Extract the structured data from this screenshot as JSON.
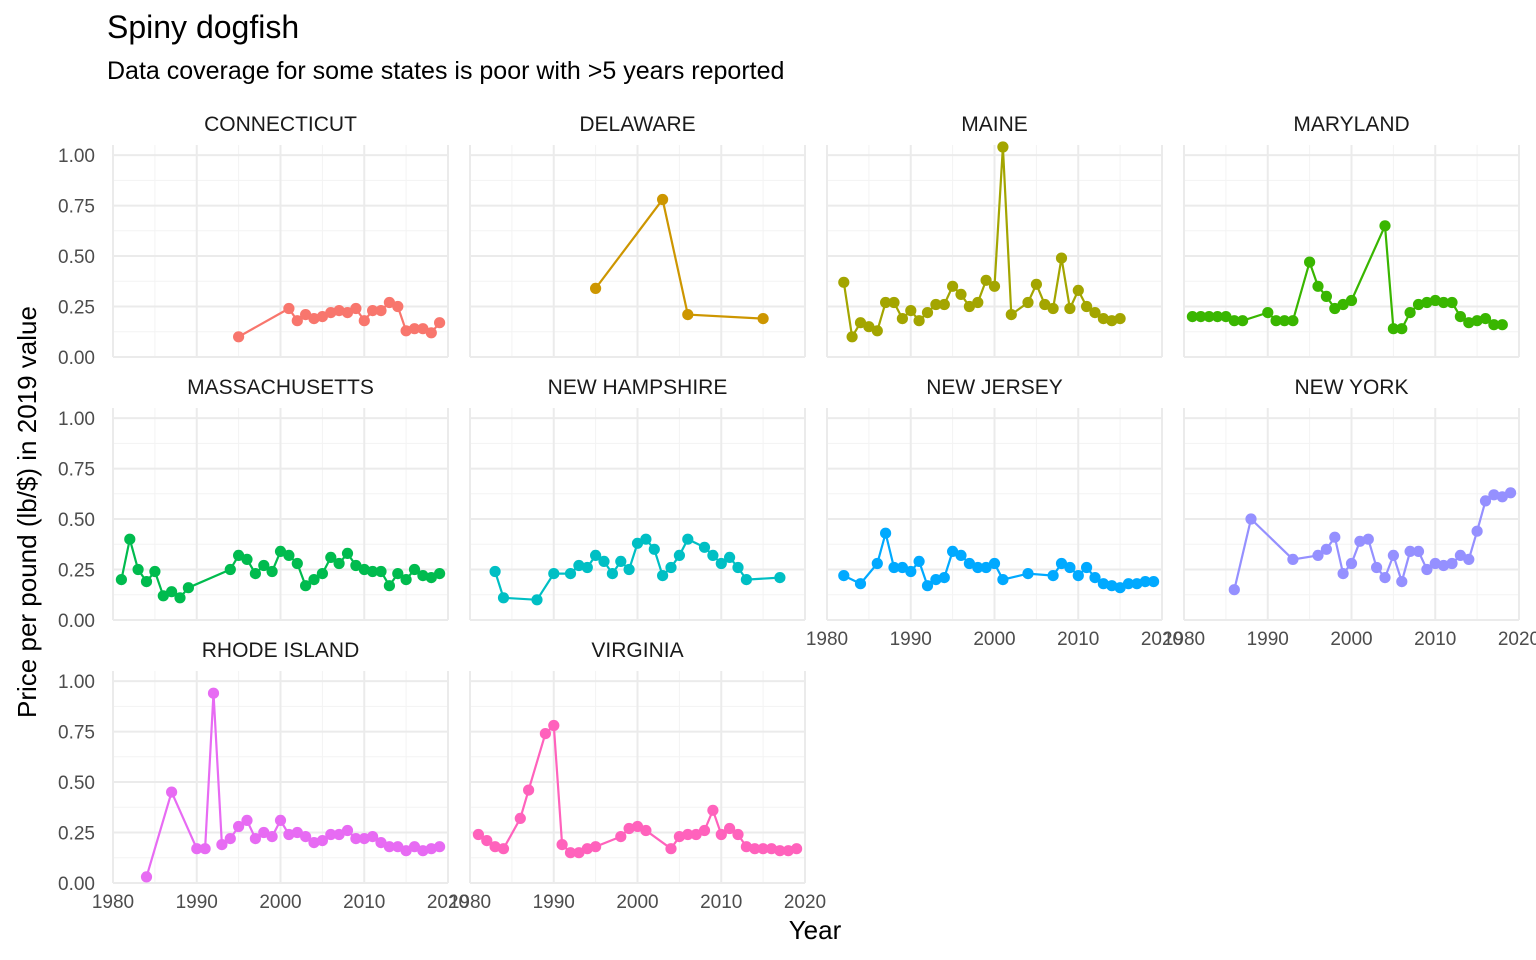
{
  "chart_data": {
    "type": "line",
    "title": "Spiny dogfish",
    "subtitle": "Data coverage for some states is poor with >5 years reported",
    "xlabel": "Year",
    "ylabel": "Price per pound (lb/$) in 2019 value",
    "xlim": [
      1980,
      2020
    ],
    "ylim": [
      0,
      1.05
    ],
    "x_ticks": [
      "1980",
      "1990",
      "2000",
      "2010",
      "2020"
    ],
    "y_ticks": [
      "0.00",
      "0.25",
      "0.50",
      "0.75",
      "1.00"
    ],
    "grid": true,
    "facets": [
      {
        "name": "CONNECTICUT",
        "color": "#F8766D",
        "points": [
          [
            1995,
            0.1
          ],
          [
            2001,
            0.24
          ],
          [
            2002,
            0.18
          ],
          [
            2003,
            0.21
          ],
          [
            2004,
            0.19
          ],
          [
            2005,
            0.2
          ],
          [
            2006,
            0.22
          ],
          [
            2007,
            0.23
          ],
          [
            2008,
            0.22
          ],
          [
            2009,
            0.24
          ],
          [
            2010,
            0.18
          ],
          [
            2011,
            0.23
          ],
          [
            2012,
            0.23
          ],
          [
            2013,
            0.27
          ],
          [
            2014,
            0.25
          ],
          [
            2015,
            0.13
          ],
          [
            2016,
            0.14
          ],
          [
            2017,
            0.14
          ],
          [
            2018,
            0.12
          ],
          [
            2019,
            0.17
          ]
        ]
      },
      {
        "name": "DELAWARE",
        "color": "#CD9600",
        "points": [
          [
            1995,
            0.34
          ],
          [
            2003,
            0.78
          ],
          [
            2006,
            0.21
          ],
          [
            2015,
            0.19
          ]
        ]
      },
      {
        "name": "MAINE",
        "color": "#A3A500",
        "points": [
          [
            1982,
            0.37
          ],
          [
            1983,
            0.1
          ],
          [
            1984,
            0.17
          ],
          [
            1985,
            0.15
          ],
          [
            1986,
            0.13
          ],
          [
            1987,
            0.27
          ],
          [
            1988,
            0.27
          ],
          [
            1989,
            0.19
          ],
          [
            1990,
            0.23
          ],
          [
            1991,
            0.18
          ],
          [
            1992,
            0.22
          ],
          [
            1993,
            0.26
          ],
          [
            1994,
            0.26
          ],
          [
            1995,
            0.35
          ],
          [
            1996,
            0.31
          ],
          [
            1997,
            0.25
          ],
          [
            1998,
            0.27
          ],
          [
            1999,
            0.38
          ],
          [
            2000,
            0.35
          ],
          [
            2001,
            1.04
          ],
          [
            2002,
            0.21
          ],
          [
            2004,
            0.27
          ],
          [
            2005,
            0.36
          ],
          [
            2006,
            0.26
          ],
          [
            2007,
            0.24
          ],
          [
            2008,
            0.49
          ],
          [
            2009,
            0.24
          ],
          [
            2010,
            0.33
          ],
          [
            2011,
            0.25
          ],
          [
            2012,
            0.22
          ],
          [
            2013,
            0.19
          ],
          [
            2014,
            0.18
          ],
          [
            2015,
            0.19
          ]
        ]
      },
      {
        "name": "MARYLAND",
        "color": "#39B600",
        "points": [
          [
            1981,
            0.2
          ],
          [
            1982,
            0.2
          ],
          [
            1983,
            0.2
          ],
          [
            1984,
            0.2
          ],
          [
            1985,
            0.2
          ],
          [
            1986,
            0.18
          ],
          [
            1987,
            0.18
          ],
          [
            1990,
            0.22
          ],
          [
            1991,
            0.18
          ],
          [
            1992,
            0.18
          ],
          [
            1993,
            0.18
          ],
          [
            1995,
            0.47
          ],
          [
            1996,
            0.35
          ],
          [
            1997,
            0.3
          ],
          [
            1998,
            0.24
          ],
          [
            1999,
            0.26
          ],
          [
            2000,
            0.28
          ],
          [
            2004,
            0.65
          ],
          [
            2005,
            0.14
          ],
          [
            2006,
            0.14
          ],
          [
            2007,
            0.22
          ],
          [
            2008,
            0.26
          ],
          [
            2009,
            0.27
          ],
          [
            2010,
            0.28
          ],
          [
            2011,
            0.27
          ],
          [
            2012,
            0.27
          ],
          [
            2013,
            0.2
          ],
          [
            2014,
            0.17
          ],
          [
            2015,
            0.18
          ],
          [
            2016,
            0.19
          ],
          [
            2017,
            0.16
          ],
          [
            2018,
            0.16
          ]
        ]
      },
      {
        "name": "MASSACHUSETTS",
        "color": "#00BB4E",
        "points": [
          [
            1981,
            0.2
          ],
          [
            1982,
            0.4
          ],
          [
            1983,
            0.25
          ],
          [
            1984,
            0.19
          ],
          [
            1985,
            0.24
          ],
          [
            1986,
            0.12
          ],
          [
            1987,
            0.14
          ],
          [
            1988,
            0.11
          ],
          [
            1989,
            0.16
          ],
          [
            1994,
            0.25
          ],
          [
            1995,
            0.32
          ],
          [
            1996,
            0.3
          ],
          [
            1997,
            0.23
          ],
          [
            1998,
            0.27
          ],
          [
            1999,
            0.24
          ],
          [
            2000,
            0.34
          ],
          [
            2001,
            0.32
          ],
          [
            2002,
            0.28
          ],
          [
            2003,
            0.17
          ],
          [
            2004,
            0.2
          ],
          [
            2005,
            0.23
          ],
          [
            2006,
            0.31
          ],
          [
            2007,
            0.28
          ],
          [
            2008,
            0.33
          ],
          [
            2009,
            0.27
          ],
          [
            2010,
            0.25
          ],
          [
            2011,
            0.24
          ],
          [
            2012,
            0.24
          ],
          [
            2013,
            0.17
          ],
          [
            2014,
            0.23
          ],
          [
            2015,
            0.2
          ],
          [
            2016,
            0.25
          ],
          [
            2017,
            0.22
          ],
          [
            2018,
            0.21
          ],
          [
            2019,
            0.23
          ]
        ]
      },
      {
        "name": "NEW HAMPSHIRE",
        "color": "#00BFC4",
        "points": [
          [
            1983,
            0.24
          ],
          [
            1984,
            0.11
          ],
          [
            1988,
            0.1
          ],
          [
            1990,
            0.23
          ],
          [
            1992,
            0.23
          ],
          [
            1993,
            0.27
          ],
          [
            1994,
            0.26
          ],
          [
            1995,
            0.32
          ],
          [
            1996,
            0.29
          ],
          [
            1997,
            0.23
          ],
          [
            1998,
            0.29
          ],
          [
            1999,
            0.25
          ],
          [
            2000,
            0.38
          ],
          [
            2001,
            0.4
          ],
          [
            2002,
            0.35
          ],
          [
            2003,
            0.22
          ],
          [
            2004,
            0.26
          ],
          [
            2005,
            0.32
          ],
          [
            2006,
            0.4
          ],
          [
            2008,
            0.36
          ],
          [
            2009,
            0.32
          ],
          [
            2010,
            0.28
          ],
          [
            2011,
            0.31
          ],
          [
            2012,
            0.26
          ],
          [
            2013,
            0.2
          ],
          [
            2017,
            0.21
          ]
        ]
      },
      {
        "name": "NEW JERSEY",
        "color": "#00A9FF",
        "points": [
          [
            1982,
            0.22
          ],
          [
            1984,
            0.18
          ],
          [
            1986,
            0.28
          ],
          [
            1987,
            0.43
          ],
          [
            1988,
            0.26
          ],
          [
            1989,
            0.26
          ],
          [
            1990,
            0.24
          ],
          [
            1991,
            0.29
          ],
          [
            1992,
            0.17
          ],
          [
            1993,
            0.2
          ],
          [
            1994,
            0.21
          ],
          [
            1995,
            0.34
          ],
          [
            1996,
            0.32
          ],
          [
            1997,
            0.28
          ],
          [
            1998,
            0.26
          ],
          [
            1999,
            0.26
          ],
          [
            2000,
            0.28
          ],
          [
            2001,
            0.2
          ],
          [
            2004,
            0.23
          ],
          [
            2007,
            0.22
          ],
          [
            2008,
            0.28
          ],
          [
            2009,
            0.26
          ],
          [
            2010,
            0.22
          ],
          [
            2011,
            0.26
          ],
          [
            2012,
            0.21
          ],
          [
            2013,
            0.18
          ],
          [
            2014,
            0.17
          ],
          [
            2015,
            0.16
          ],
          [
            2016,
            0.18
          ],
          [
            2017,
            0.18
          ],
          [
            2018,
            0.19
          ],
          [
            2019,
            0.19
          ]
        ]
      },
      {
        "name": "NEW YORK",
        "color": "#9590FF",
        "points": [
          [
            1986,
            0.15
          ],
          [
            1988,
            0.5
          ],
          [
            1993,
            0.3
          ],
          [
            1996,
            0.32
          ],
          [
            1997,
            0.35
          ],
          [
            1998,
            0.41
          ],
          [
            1999,
            0.23
          ],
          [
            2000,
            0.28
          ],
          [
            2001,
            0.39
          ],
          [
            2002,
            0.4
          ],
          [
            2003,
            0.26
          ],
          [
            2004,
            0.21
          ],
          [
            2005,
            0.32
          ],
          [
            2006,
            0.19
          ],
          [
            2007,
            0.34
          ],
          [
            2008,
            0.34
          ],
          [
            2009,
            0.25
          ],
          [
            2010,
            0.28
          ],
          [
            2011,
            0.27
          ],
          [
            2012,
            0.28
          ],
          [
            2013,
            0.32
          ],
          [
            2014,
            0.3
          ],
          [
            2015,
            0.44
          ],
          [
            2016,
            0.59
          ],
          [
            2017,
            0.62
          ],
          [
            2018,
            0.61
          ],
          [
            2019,
            0.63
          ]
        ]
      },
      {
        "name": "RHODE ISLAND",
        "color": "#E76BF3",
        "points": [
          [
            1984,
            0.03
          ],
          [
            1987,
            0.45
          ],
          [
            1990,
            0.17
          ],
          [
            1991,
            0.17
          ],
          [
            1992,
            0.94
          ],
          [
            1993,
            0.19
          ],
          [
            1994,
            0.22
          ],
          [
            1995,
            0.28
          ],
          [
            1996,
            0.31
          ],
          [
            1997,
            0.22
          ],
          [
            1998,
            0.25
          ],
          [
            1999,
            0.23
          ],
          [
            2000,
            0.31
          ],
          [
            2001,
            0.24
          ],
          [
            2002,
            0.25
          ],
          [
            2003,
            0.23
          ],
          [
            2004,
            0.2
          ],
          [
            2005,
            0.21
          ],
          [
            2006,
            0.24
          ],
          [
            2007,
            0.24
          ],
          [
            2008,
            0.26
          ],
          [
            2009,
            0.22
          ],
          [
            2010,
            0.22
          ],
          [
            2011,
            0.23
          ],
          [
            2012,
            0.2
          ],
          [
            2013,
            0.18
          ],
          [
            2014,
            0.18
          ],
          [
            2015,
            0.16
          ],
          [
            2016,
            0.18
          ],
          [
            2017,
            0.16
          ],
          [
            2018,
            0.17
          ],
          [
            2019,
            0.18
          ]
        ]
      },
      {
        "name": "VIRGINIA",
        "color": "#FF62BC",
        "points": [
          [
            1981,
            0.24
          ],
          [
            1982,
            0.21
          ],
          [
            1983,
            0.18
          ],
          [
            1984,
            0.17
          ],
          [
            1986,
            0.32
          ],
          [
            1987,
            0.46
          ],
          [
            1989,
            0.74
          ],
          [
            1990,
            0.78
          ],
          [
            1991,
            0.19
          ],
          [
            1992,
            0.15
          ],
          [
            1993,
            0.15
          ],
          [
            1994,
            0.17
          ],
          [
            1995,
            0.18
          ],
          [
            1998,
            0.23
          ],
          [
            1999,
            0.27
          ],
          [
            2000,
            0.28
          ],
          [
            2001,
            0.26
          ],
          [
            2004,
            0.17
          ],
          [
            2005,
            0.23
          ],
          [
            2006,
            0.24
          ],
          [
            2007,
            0.24
          ],
          [
            2008,
            0.26
          ],
          [
            2009,
            0.36
          ],
          [
            2010,
            0.24
          ],
          [
            2011,
            0.27
          ],
          [
            2012,
            0.24
          ],
          [
            2013,
            0.18
          ],
          [
            2014,
            0.17
          ],
          [
            2015,
            0.17
          ],
          [
            2016,
            0.17
          ],
          [
            2017,
            0.16
          ],
          [
            2018,
            0.16
          ],
          [
            2019,
            0.17
          ]
        ]
      }
    ]
  }
}
